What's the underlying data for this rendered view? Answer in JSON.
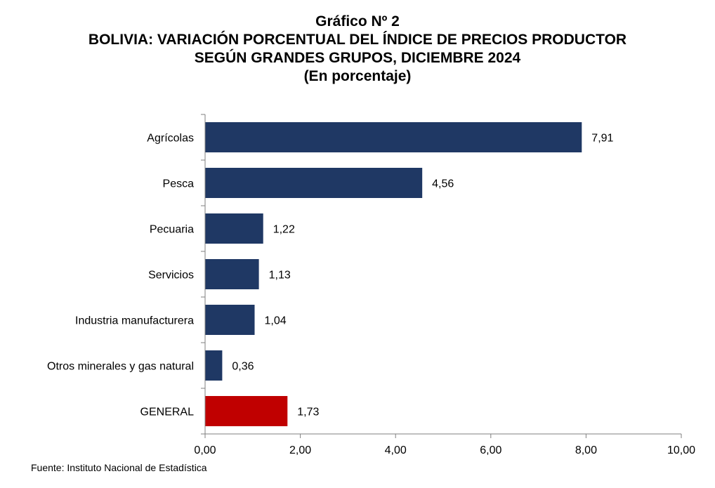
{
  "header": {
    "chart_number": "Gráfico Nº 2",
    "title_line1": "BOLIVIA: VARIACIÓN PORCENTUAL DEL ÍNDICE DE PRECIOS PRODUCTOR",
    "title_line2": "SEGÚN GRANDES GRUPOS, DICIEMBRE 2024",
    "unit": "(En porcentaje)"
  },
  "footer": {
    "source": "Fuente: Instituto Nacional de Estadística"
  },
  "colors": {
    "bar": "#1f3864",
    "highlight_bar": "#c00000",
    "axis": "#7f7f7f"
  },
  "chart_data": {
    "type": "bar",
    "orientation": "horizontal",
    "title": "BOLIVIA: VARIACIÓN PORCENTUAL DEL ÍNDICE DE PRECIOS PRODUCTOR SEGÚN GRANDES GRUPOS, DICIEMBRE 2024",
    "categories": [
      "Agrícolas",
      "Pesca",
      "Pecuaria",
      "Servicios",
      "Industria manufacturera",
      "Otros minerales y gas natural",
      "GENERAL"
    ],
    "values": [
      7.91,
      4.56,
      1.22,
      1.13,
      1.04,
      0.36,
      1.73
    ],
    "value_labels": [
      "7,91",
      "4,56",
      "1,22",
      "1,13",
      "1,04",
      "0,36",
      "1,73"
    ],
    "highlighted_category": "GENERAL",
    "xlim": [
      0,
      10
    ],
    "xticks": [
      0,
      2,
      4,
      6,
      8,
      10
    ],
    "xtick_labels": [
      "0,00",
      "2,00",
      "4,00",
      "6,00",
      "8,00",
      "10,00"
    ],
    "grid": false,
    "legend": "none"
  }
}
